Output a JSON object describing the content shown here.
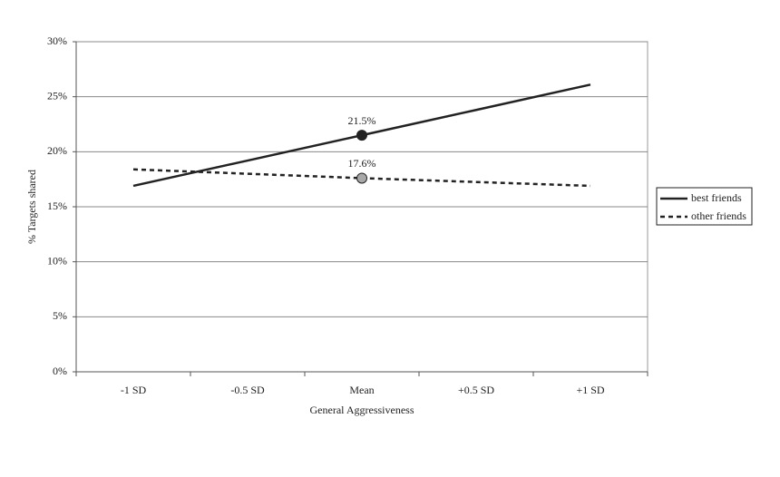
{
  "chart_data": {
    "type": "line",
    "x_label": "General Aggressiveness",
    "y_label": "% Targets shared",
    "categories": [
      "-1 SD",
      "-0.5 SD",
      "Mean",
      "+0.5 SD",
      "+1 SD"
    ],
    "series": [
      {
        "name": "best friends",
        "color": "#222222",
        "line_style": "solid",
        "marker_color": "#222222",
        "values": [
          16.9,
          19.2,
          21.5,
          23.8,
          26.1
        ],
        "value_labels": [
          null,
          null,
          "21.5%",
          null,
          null
        ]
      },
      {
        "name": "other friends",
        "color": "#222222",
        "line_style": "dashed",
        "marker_color": "#a8a8a8",
        "values": [
          18.4,
          18.0,
          17.6,
          17.25,
          16.9
        ],
        "value_labels": [
          null,
          null,
          "17.6%",
          null,
          null
        ]
      }
    ],
    "ylim": [
      0,
      30
    ],
    "yticks": [
      {
        "value": 0,
        "label": "0%"
      },
      {
        "value": 5,
        "label": "5%"
      },
      {
        "value": 10,
        "label": "10%"
      },
      {
        "value": 15,
        "label": "15%"
      },
      {
        "value": 20,
        "label": "20%"
      },
      {
        "value": 25,
        "label": "25%"
      },
      {
        "value": 30,
        "label": "30%"
      }
    ],
    "grid": true,
    "legend": "right"
  }
}
